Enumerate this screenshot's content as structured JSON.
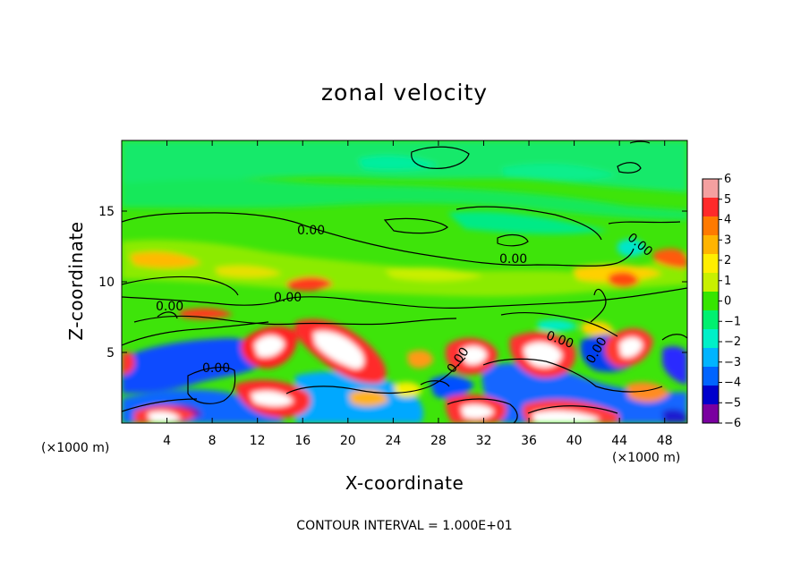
{
  "chart_data": {
    "type": "heatmap",
    "title": "zonal velocity",
    "xlabel": "X-coordinate",
    "ylabel": "Z-coordinate",
    "x_unit": "(×1000 m)",
    "x_ticks": [
      "4",
      "8",
      "12",
      "16",
      "20",
      "24",
      "28",
      "32",
      "36",
      "40",
      "44",
      "48"
    ],
    "y_ticks": [
      "5",
      "10",
      "15"
    ],
    "xlim": [
      0,
      50
    ],
    "ylim": [
      0,
      20
    ],
    "colorbar": {
      "ticks": [
        "6",
        "5",
        "4",
        "3",
        "2",
        "1",
        "0",
        "−1",
        "−2",
        "−3",
        "−4",
        "−5",
        "−6"
      ],
      "range": [
        -6,
        6
      ],
      "colors": [
        "#f4a0a0",
        "#ff2a2a",
        "#ff7a00",
        "#ffb400",
        "#ffee00",
        "#c8f000",
        "#36e500",
        "#00f070",
        "#00f0c8",
        "#00b4ff",
        "#0064ff",
        "#0000cc",
        "#7a00a0"
      ]
    },
    "contour_level": "0.00",
    "contour_labels": [
      "0.00",
      "0.00",
      "0.00",
      "0.00",
      "0.00",
      "0.00",
      "0.00",
      "0.00",
      "0.00"
    ],
    "footer": "CONTOUR INTERVAL = 1.000E+01"
  }
}
